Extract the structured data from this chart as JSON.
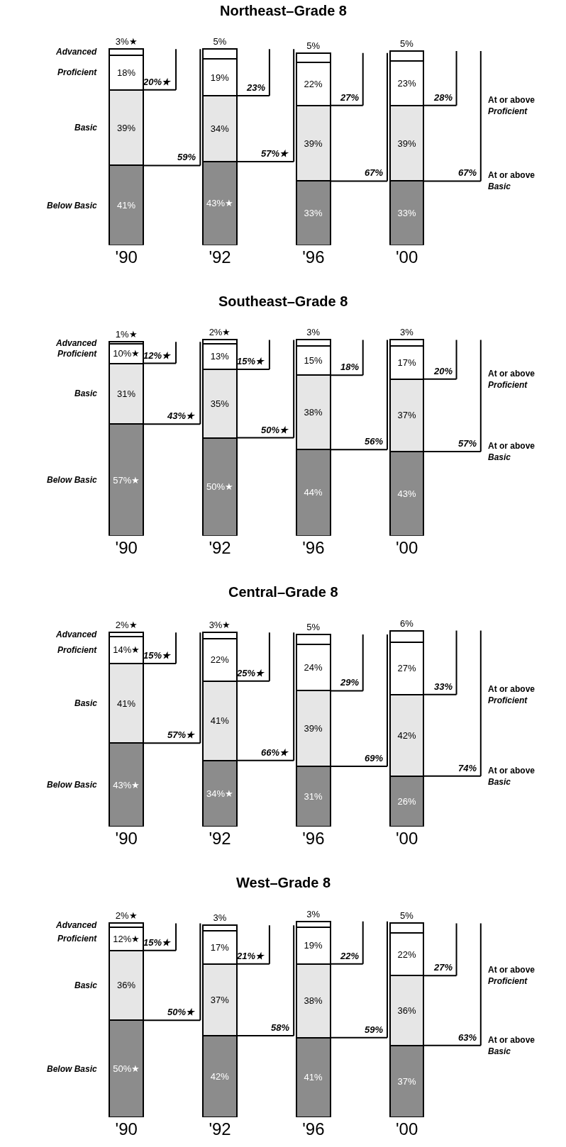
{
  "chart_data": [
    {
      "type": "bar",
      "stacked": true,
      "title": "Northeast–Grade 8",
      "categories": [
        "'90",
        "'92",
        "'96",
        "'00"
      ],
      "tick_labels": "x",
      "legend": false,
      "series": [
        {
          "name": "Below Basic",
          "color": "#8c8c8c",
          "values": [
            41,
            43,
            33,
            33
          ],
          "value_labels": [
            "41%",
            "43%★",
            "33%",
            "33%"
          ]
        },
        {
          "name": "Basic",
          "color": "#e6e6e6",
          "values": [
            39,
            34,
            39,
            39
          ],
          "value_labels": [
            "39%",
            "34%",
            "39%",
            "39%"
          ]
        },
        {
          "name": "Proficient",
          "color": "#ffffff",
          "values": [
            18,
            19,
            22,
            23
          ],
          "value_labels": [
            "18%",
            "19%",
            "22%",
            "23%"
          ]
        },
        {
          "name": "Advanced",
          "color": "#ffffff",
          "values": [
            3,
            5,
            5,
            5
          ],
          "value_labels": [
            "3%★",
            "5%",
            "5%",
            "5%"
          ]
        }
      ],
      "annotations": [
        "20%★",
        "59%",
        "23%",
        "57%★",
        "27%",
        "67%",
        "28%",
        "67%",
        "At or above Proficient",
        "At or above Basic"
      ]
    },
    {
      "type": "bar",
      "stacked": true,
      "title": "Southeast–Grade 8",
      "categories": [
        "'90",
        "'92",
        "'96",
        "'00"
      ],
      "tick_labels": "x",
      "legend": false,
      "series": [
        {
          "name": "Below Basic",
          "color": "#8c8c8c",
          "values": [
            57,
            50,
            44,
            43
          ],
          "value_labels": [
            "57%★",
            "50%★",
            "44%",
            "43%"
          ]
        },
        {
          "name": "Basic",
          "color": "#e6e6e6",
          "values": [
            31,
            35,
            38,
            37
          ],
          "value_labels": [
            "31%",
            "35%",
            "38%",
            "37%"
          ]
        },
        {
          "name": "Proficient",
          "color": "#ffffff",
          "values": [
            10,
            13,
            15,
            17
          ],
          "value_labels": [
            "10%★",
            "13%",
            "15%",
            "17%"
          ]
        },
        {
          "name": "Advanced",
          "color": "#ffffff",
          "values": [
            1,
            2,
            3,
            3
          ],
          "value_labels": [
            "1%★",
            "2%★",
            "3%",
            "3%"
          ]
        }
      ],
      "annotations": [
        "12%★",
        "43%★",
        "15%★",
        "50%★",
        "18%",
        "56%",
        "20%",
        "57%",
        "At or above Proficient",
        "At or above Basic"
      ]
    },
    {
      "type": "bar",
      "stacked": true,
      "title": "Central–Grade 8",
      "categories": [
        "'90",
        "'92",
        "'96",
        "'00"
      ],
      "tick_labels": "x",
      "legend": false,
      "series": [
        {
          "name": "Below Basic",
          "color": "#8c8c8c",
          "values": [
            43,
            34,
            31,
            26
          ],
          "value_labels": [
            "43%★",
            "34%★",
            "31%",
            "26%"
          ]
        },
        {
          "name": "Basic",
          "color": "#e6e6e6",
          "values": [
            41,
            41,
            39,
            42
          ],
          "value_labels": [
            "41%",
            "41%",
            "39%",
            "42%"
          ]
        },
        {
          "name": "Proficient",
          "color": "#ffffff",
          "values": [
            14,
            22,
            24,
            27
          ],
          "value_labels": [
            "14%★",
            "22%",
            "24%",
            "27%"
          ]
        },
        {
          "name": "Advanced",
          "color": "#ffffff",
          "values": [
            2,
            3,
            5,
            6
          ],
          "value_labels": [
            "2%★",
            "3%★",
            "5%",
            "6%"
          ]
        }
      ],
      "annotations": [
        "15%★",
        "57%★",
        "25%★",
        "66%★",
        "29%",
        "69%",
        "33%",
        "74%",
        "At or above Proficient",
        "At or above Basic"
      ]
    },
    {
      "type": "bar",
      "stacked": true,
      "title": "West–Grade 8",
      "categories": [
        "'90",
        "'92",
        "'96",
        "'00"
      ],
      "tick_labels": "x",
      "legend": false,
      "series": [
        {
          "name": "Below Basic",
          "color": "#8c8c8c",
          "values": [
            50,
            42,
            41,
            37
          ],
          "value_labels": [
            "50%★",
            "42%",
            "41%",
            "37%"
          ]
        },
        {
          "name": "Basic",
          "color": "#e6e6e6",
          "values": [
            36,
            37,
            38,
            36
          ],
          "value_labels": [
            "36%",
            "37%",
            "38%",
            "36%"
          ]
        },
        {
          "name": "Proficient",
          "color": "#ffffff",
          "values": [
            12,
            17,
            19,
            22
          ],
          "value_labels": [
            "12%★",
            "17%",
            "19%",
            "22%"
          ]
        },
        {
          "name": "Advanced",
          "color": "#ffffff",
          "values": [
            2,
            3,
            3,
            5
          ],
          "value_labels": [
            "2%★",
            "3%",
            "3%",
            "5%"
          ]
        }
      ],
      "annotations": [
        "15%★",
        "50%★",
        "21%★",
        "58%",
        "22%",
        "59%",
        "27%",
        "63%",
        "At or above Proficient",
        "At or above Basic"
      ]
    }
  ]
}
